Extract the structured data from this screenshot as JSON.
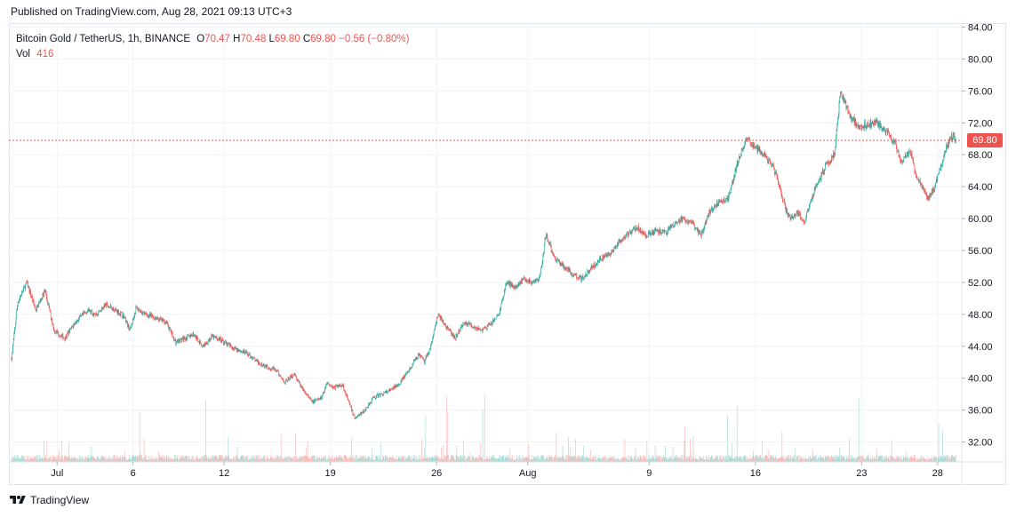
{
  "header": {
    "published": "Published on TradingView.com, Aug 28, 2021 09:13 UTC+3"
  },
  "legend": {
    "symbol": "Bitcoin Gold / TetherUS, 1h, BINANCE",
    "o_label": "O",
    "o_value": "70.47",
    "h_label": "H",
    "h_value": "70.48",
    "l_label": "L",
    "l_value": "69.80",
    "c_label": "C",
    "c_value": "69.80",
    "change": "−0.56 (−0.80%)",
    "vol_label": "Vol",
    "vol_value": "416"
  },
  "price_tag": "69.80",
  "footer": {
    "brand": "TradingView",
    "logo_icon": "tradingview-logo-icon"
  },
  "colors": {
    "up": "#26a69a",
    "down": "#ef5350",
    "grid": "#f0f3fa",
    "last_price": "#ef5350"
  },
  "chart_data": {
    "type": "candlestick",
    "interval": "1h",
    "ylim": [
      29.5,
      84.5
    ],
    "y_ticks": [
      "84.00",
      "80.00",
      "76.00",
      "72.00",
      "68.00",
      "64.00",
      "60.00",
      "56.00",
      "52.00",
      "48.00",
      "44.00",
      "40.00",
      "36.00",
      "32.00"
    ],
    "x_range": [
      "Jun 28",
      "Aug 28"
    ],
    "x_ticks": [
      {
        "label": "Jul",
        "day": 3
      },
      {
        "label": "6",
        "day": 8
      },
      {
        "label": "12",
        "day": 14
      },
      {
        "label": "19",
        "day": 21
      },
      {
        "label": "26",
        "day": 28
      },
      {
        "label": "Aug",
        "day": 34
      },
      {
        "label": "9",
        "day": 42
      },
      {
        "label": "16",
        "day": 49
      },
      {
        "label": "23",
        "day": 56
      },
      {
        "label": "28",
        "day": 61
      }
    ],
    "last_price": 69.8,
    "close_path": [
      [
        0,
        42.5
      ],
      [
        0.4,
        49.5
      ],
      [
        1,
        52
      ],
      [
        1.6,
        48.5
      ],
      [
        2.2,
        51
      ],
      [
        2.8,
        46
      ],
      [
        3.5,
        45
      ],
      [
        4.2,
        47
      ],
      [
        5,
        48.5
      ],
      [
        5.6,
        48
      ],
      [
        6.2,
        49.2
      ],
      [
        6.8,
        48.6
      ],
      [
        7.4,
        47.8
      ],
      [
        7.8,
        46
      ],
      [
        8.2,
        48.8
      ],
      [
        8.8,
        48
      ],
      [
        9.6,
        47.5
      ],
      [
        10.2,
        47
      ],
      [
        10.8,
        44.5
      ],
      [
        11.4,
        45
      ],
      [
        12,
        45.5
      ],
      [
        12.6,
        44
      ],
      [
        13.2,
        45.2
      ],
      [
        13.8,
        44.8
      ],
      [
        14.4,
        44
      ],
      [
        15,
        43.5
      ],
      [
        15.6,
        43
      ],
      [
        16.2,
        42
      ],
      [
        16.8,
        41.5
      ],
      [
        17.4,
        41
      ],
      [
        18,
        39.5
      ],
      [
        18.6,
        40.5
      ],
      [
        19.2,
        38.5
      ],
      [
        19.8,
        37
      ],
      [
        20.4,
        37.5
      ],
      [
        20.8,
        39.5
      ],
      [
        21.2,
        38.8
      ],
      [
        21.8,
        39.2
      ],
      [
        22.2,
        37
      ],
      [
        22.6,
        35
      ],
      [
        23.2,
        35.8
      ],
      [
        23.8,
        37.5
      ],
      [
        24.4,
        38
      ],
      [
        25,
        38.5
      ],
      [
        25.6,
        39.5
      ],
      [
        26.2,
        41
      ],
      [
        26.8,
        43
      ],
      [
        27.2,
        42
      ],
      [
        27.6,
        44
      ],
      [
        28.1,
        48
      ],
      [
        28.6,
        46.5
      ],
      [
        29.2,
        45
      ],
      [
        29.8,
        47
      ],
      [
        30.4,
        46.5
      ],
      [
        31,
        46
      ],
      [
        31.6,
        46.8
      ],
      [
        32.1,
        48
      ],
      [
        32.6,
        52
      ],
      [
        33.2,
        51.5
      ],
      [
        33.8,
        52.5
      ],
      [
        34.4,
        51.8
      ],
      [
        34.8,
        52.5
      ],
      [
        35.2,
        58
      ],
      [
        35.8,
        55
      ],
      [
        36.4,
        54
      ],
      [
        37,
        53
      ],
      [
        37.6,
        52.5
      ],
      [
        38.2,
        53.8
      ],
      [
        38.8,
        55
      ],
      [
        39.4,
        55.5
      ],
      [
        40,
        57
      ],
      [
        40.6,
        58
      ],
      [
        41.2,
        59
      ],
      [
        41.8,
        57.8
      ],
      [
        42.4,
        58.5
      ],
      [
        43,
        58.2
      ],
      [
        43.6,
        59
      ],
      [
        44.2,
        60
      ],
      [
        44.8,
        59.5
      ],
      [
        45.4,
        58
      ],
      [
        46,
        61
      ],
      [
        46.6,
        62
      ],
      [
        47.2,
        62.5
      ],
      [
        47.8,
        67
      ],
      [
        48.4,
        70
      ],
      [
        49,
        69
      ],
      [
        49.6,
        68
      ],
      [
        50.2,
        66.5
      ],
      [
        50.6,
        64
      ],
      [
        51,
        61
      ],
      [
        51.4,
        60
      ],
      [
        51.8,
        60.8
      ],
      [
        52.2,
        59.5
      ],
      [
        52.6,
        62
      ],
      [
        53,
        64
      ],
      [
        53.6,
        66.5
      ],
      [
        54.2,
        68
      ],
      [
        54.6,
        76
      ],
      [
        55.2,
        73
      ],
      [
        55.8,
        71.5
      ],
      [
        56.4,
        71.8
      ],
      [
        57,
        72
      ],
      [
        57.6,
        71
      ],
      [
        58.2,
        69.5
      ],
      [
        58.6,
        67
      ],
      [
        59.2,
        68.5
      ],
      [
        59.6,
        65
      ],
      [
        60,
        64
      ],
      [
        60.4,
        62.5
      ],
      [
        60.8,
        64
      ],
      [
        61.2,
        66.5
      ],
      [
        61.6,
        69
      ],
      [
        62,
        70.5
      ],
      [
        62.2,
        69.8
      ]
    ]
  }
}
